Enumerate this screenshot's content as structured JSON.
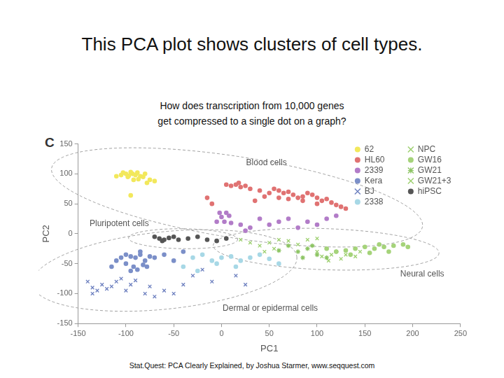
{
  "title": "This PCA plot shows clusters of cell types.",
  "question": [
    "How does transcription from 10,000 genes",
    "get compressed to a single dot on a graph?"
  ],
  "panel_label": "C",
  "footer": "Stat.Quest: PCA Clearly Explained, by Joshua Starmer, www.seqquest.com",
  "chart_data": {
    "type": "scatter",
    "x_label": "PC1",
    "y_label": "PC2",
    "xlim": [
      -150,
      250
    ],
    "xticks": [
      -150,
      -100,
      -50,
      0,
      50,
      100,
      150,
      200,
      250
    ],
    "ylim": [
      -150,
      150
    ],
    "yticks": [
      -150,
      -100,
      -50,
      0,
      50,
      100,
      150
    ],
    "grid": false,
    "legend": "upper right",
    "series": [
      {
        "name": "62",
        "color": "#f2e85c",
        "marker": "o",
        "x": [
          -105,
          -100,
          -97,
          -95,
          -93,
          -90,
          -88,
          -85,
          -82,
          -80,
          -92,
          -98,
          -103,
          -87,
          -75,
          -70,
          -95,
          -110,
          -78
        ],
        "y": [
          98,
          100,
          97,
          103,
          100,
          98,
          102,
          96,
          95,
          100,
          90,
          95,
          102,
          91,
          90,
          88,
          64,
          96,
          85
        ]
      },
      {
        "name": "HL60",
        "color": "#e07272",
        "marker": "o",
        "x": [
          5,
          10,
          15,
          20,
          25,
          18,
          30,
          40,
          50,
          55,
          60,
          65,
          70,
          75,
          80,
          85,
          90,
          95,
          100,
          105,
          110,
          115,
          120,
          125,
          130,
          45,
          60,
          70,
          85,
          100,
          -15,
          35,
          -10
        ],
        "y": [
          82,
          80,
          82,
          78,
          80,
          85,
          75,
          72,
          68,
          75,
          72,
          68,
          70,
          65,
          60,
          62,
          68,
          65,
          60,
          55,
          58,
          52,
          48,
          45,
          42,
          62,
          60,
          58,
          55,
          50,
          60,
          55,
          50
        ]
      },
      {
        "name": "2339",
        "color": "#b27cc8",
        "marker": "o",
        "x": [
          -2,
          0,
          3,
          5,
          8,
          -5,
          10,
          20,
          30,
          40,
          50,
          60,
          70,
          80,
          90,
          100,
          110,
          120,
          25
        ],
        "y": [
          35,
          28,
          20,
          35,
          30,
          20,
          18,
          15,
          10,
          25,
          15,
          20,
          25,
          10,
          20,
          15,
          25,
          30,
          5
        ]
      },
      {
        "name": "Kera",
        "color": "#7b8fc8",
        "marker": "o",
        "x": [
          -110,
          -105,
          -100,
          -95,
          -90,
          -85,
          -80,
          -75,
          -100,
          -92,
          -88,
          -82,
          -95,
          -70,
          -60,
          -50,
          -40,
          -115,
          -85,
          -78
        ],
        "y": [
          -45,
          -40,
          -35,
          -38,
          -40,
          -35,
          -45,
          -38,
          -50,
          -55,
          -60,
          -52,
          -62,
          -40,
          -35,
          -45,
          -30,
          -55,
          -30,
          -55
        ]
      },
      {
        "name": "BJ",
        "color": "#6c7fbf",
        "marker": "x",
        "x": [
          -140,
          -135,
          -130,
          -125,
          -120,
          -115,
          -110,
          -105,
          -100,
          -95,
          -90,
          -80,
          -70,
          -60,
          -50,
          -40,
          -30,
          -20,
          -10,
          -135,
          -75,
          15,
          25
        ],
        "y": [
          -80,
          -90,
          -95,
          -85,
          -92,
          -88,
          -80,
          -75,
          -95,
          -85,
          -78,
          -100,
          -105,
          -95,
          -100,
          -85,
          -70,
          -60,
          -80,
          -100,
          -88,
          -70,
          -85
        ]
      },
      {
        "name": "2338",
        "color": "#a7d8e6",
        "marker": "o",
        "x": [
          -30,
          -20,
          -10,
          0,
          10,
          20,
          30,
          40,
          50,
          -5,
          15,
          -40,
          -25,
          60
        ],
        "y": [
          -40,
          -35,
          -45,
          -40,
          -38,
          -45,
          -40,
          -35,
          -42,
          -50,
          -55,
          -55,
          -62,
          -50
        ]
      },
      {
        "name": "NPC",
        "color": "#9ccf6e",
        "marker": "x",
        "x": [
          20,
          30,
          40,
          50,
          60,
          70,
          80,
          90,
          100,
          45,
          55
        ],
        "y": [
          -10,
          -15,
          -20,
          -15,
          -10,
          -12,
          -18,
          -10,
          -8,
          -30,
          -25
        ]
      },
      {
        "name": "GW16",
        "color": "#a5d37a",
        "marker": "o",
        "x": [
          110,
          120,
          130,
          140,
          150,
          160,
          170,
          180,
          190,
          195,
          175,
          155,
          135,
          165
        ],
        "y": [
          -25,
          -30,
          -28,
          -25,
          -22,
          -25,
          -22,
          -20,
          -18,
          -22,
          -30,
          -32,
          -35,
          -18
        ]
      },
      {
        "name": "GW21",
        "color": "#8cc463",
        "marker": "*",
        "x": [
          70,
          80,
          90,
          100,
          110,
          120,
          85,
          60,
          95
        ],
        "y": [
          -20,
          -30,
          -25,
          -35,
          -40,
          -30,
          -40,
          -28,
          -20
        ]
      },
      {
        "name": "GW21+3",
        "color": "#9ccf6e",
        "marker": "x",
        "x": [
          100,
          105,
          115,
          125,
          130,
          140,
          145,
          112
        ],
        "y": [
          -30,
          -38,
          -35,
          -42,
          -35,
          -38,
          -30,
          -45
        ]
      },
      {
        "name": "hiPSC",
        "color": "#555555",
        "marker": "o",
        "x": [
          -70,
          -65,
          -60,
          -55,
          -50,
          -45,
          -35,
          -25,
          -15,
          -5,
          5,
          -62
        ],
        "y": [
          -5,
          -8,
          -10,
          -7,
          -5,
          -10,
          -8,
          -5,
          -10,
          -12,
          -8,
          -12
        ]
      }
    ],
    "annotations": [
      {
        "text": "Blood cells",
        "x": 47,
        "y": 118,
        "series": [
          "62",
          "HL60",
          "2339"
        ]
      },
      {
        "text": "Pluripotent cells",
        "x": -107,
        "y": 17,
        "series": [
          "hiPSC"
        ]
      },
      {
        "text": "Neural cells",
        "x": 210,
        "y": -68,
        "series": [
          "NPC",
          "GW16",
          "GW21",
          "GW21+3"
        ]
      },
      {
        "text": "Dermal or epidermal cells",
        "x": 51,
        "y": -125,
        "series": [
          "Kera",
          "BJ",
          "2338"
        ]
      }
    ]
  }
}
